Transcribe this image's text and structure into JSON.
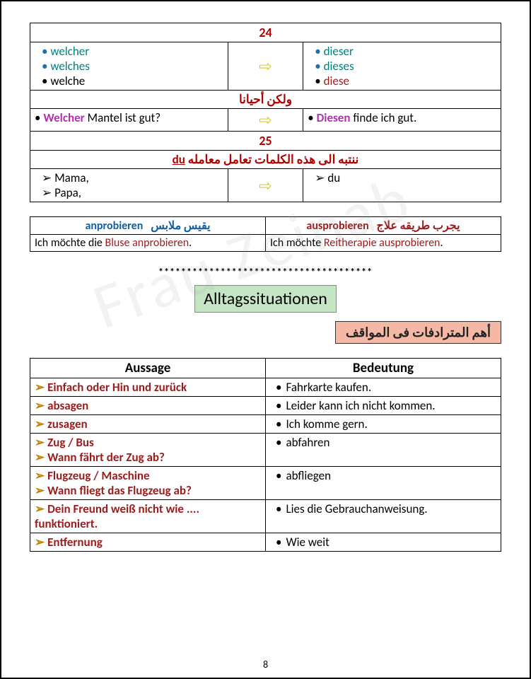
{
  "table1": {
    "row24": "24",
    "left1": [
      "welcher",
      "welches",
      "welche"
    ],
    "right1": [
      "dieser",
      "dieses",
      "diese"
    ],
    "arabic1": "ولكن أحيانا",
    "ex1_left_pre": "Welcher",
    "ex1_left_post": " Mantel ist gut?",
    "ex1_right_pre": "Diesen",
    "ex1_right_post": " finde ich gut.",
    "row25": "25",
    "arabic2_pre": "ننتبه الى هذه الكلمات تعامل معامله ",
    "arabic2_du": "du",
    "left2": [
      "Mama,",
      "Papa,"
    ],
    "right2": [
      "du"
    ]
  },
  "table2": {
    "h_left_word": "anprobieren",
    "h_left_ar": "يقيس ملابس",
    "h_right_word": "ausprobieren",
    "h_right_ar": "يجرب طريقه علاج",
    "ex_left_a": "Ich möchte die ",
    "ex_left_b": "Bluse anprobieren",
    "ex_left_c": ".",
    "ex_right_a": "Ich möchte ",
    "ex_right_b": "Reitherapie ausprobieren",
    "ex_right_c": "."
  },
  "stars": "**************************************",
  "title": "Alltagssituationen",
  "subtitle": "أهم المترادفات فى المواقف",
  "table3": {
    "h_left": "Aussage",
    "h_right": "Bedeutung",
    "rows": [
      {
        "a": [
          "Einfach oder Hin und zurück"
        ],
        "b": "Fahrkarte kaufen."
      },
      {
        "a": [
          "absagen"
        ],
        "b": "Leider kann ich nicht kommen."
      },
      {
        "a": [
          "zusagen"
        ],
        "b": "Ich komme gern."
      },
      {
        "a": [
          "Zug / Bus",
          "Wann fährt der Zug ab?"
        ],
        "b": "abfahren"
      },
      {
        "a": [
          "Flugzeug / Maschine",
          "Wann fliegt das Flugzeug ab?"
        ],
        "b": "abfliegen"
      },
      {
        "a": [
          "Dein Freund weiß nicht wie .... funktioniert."
        ],
        "b": "Lies die Gebrauchanweisung."
      },
      {
        "a": [
          "Entfernung"
        ],
        "b": "Wie weit"
      }
    ]
  },
  "page_number": "8",
  "watermark": "Frau Zeinab"
}
